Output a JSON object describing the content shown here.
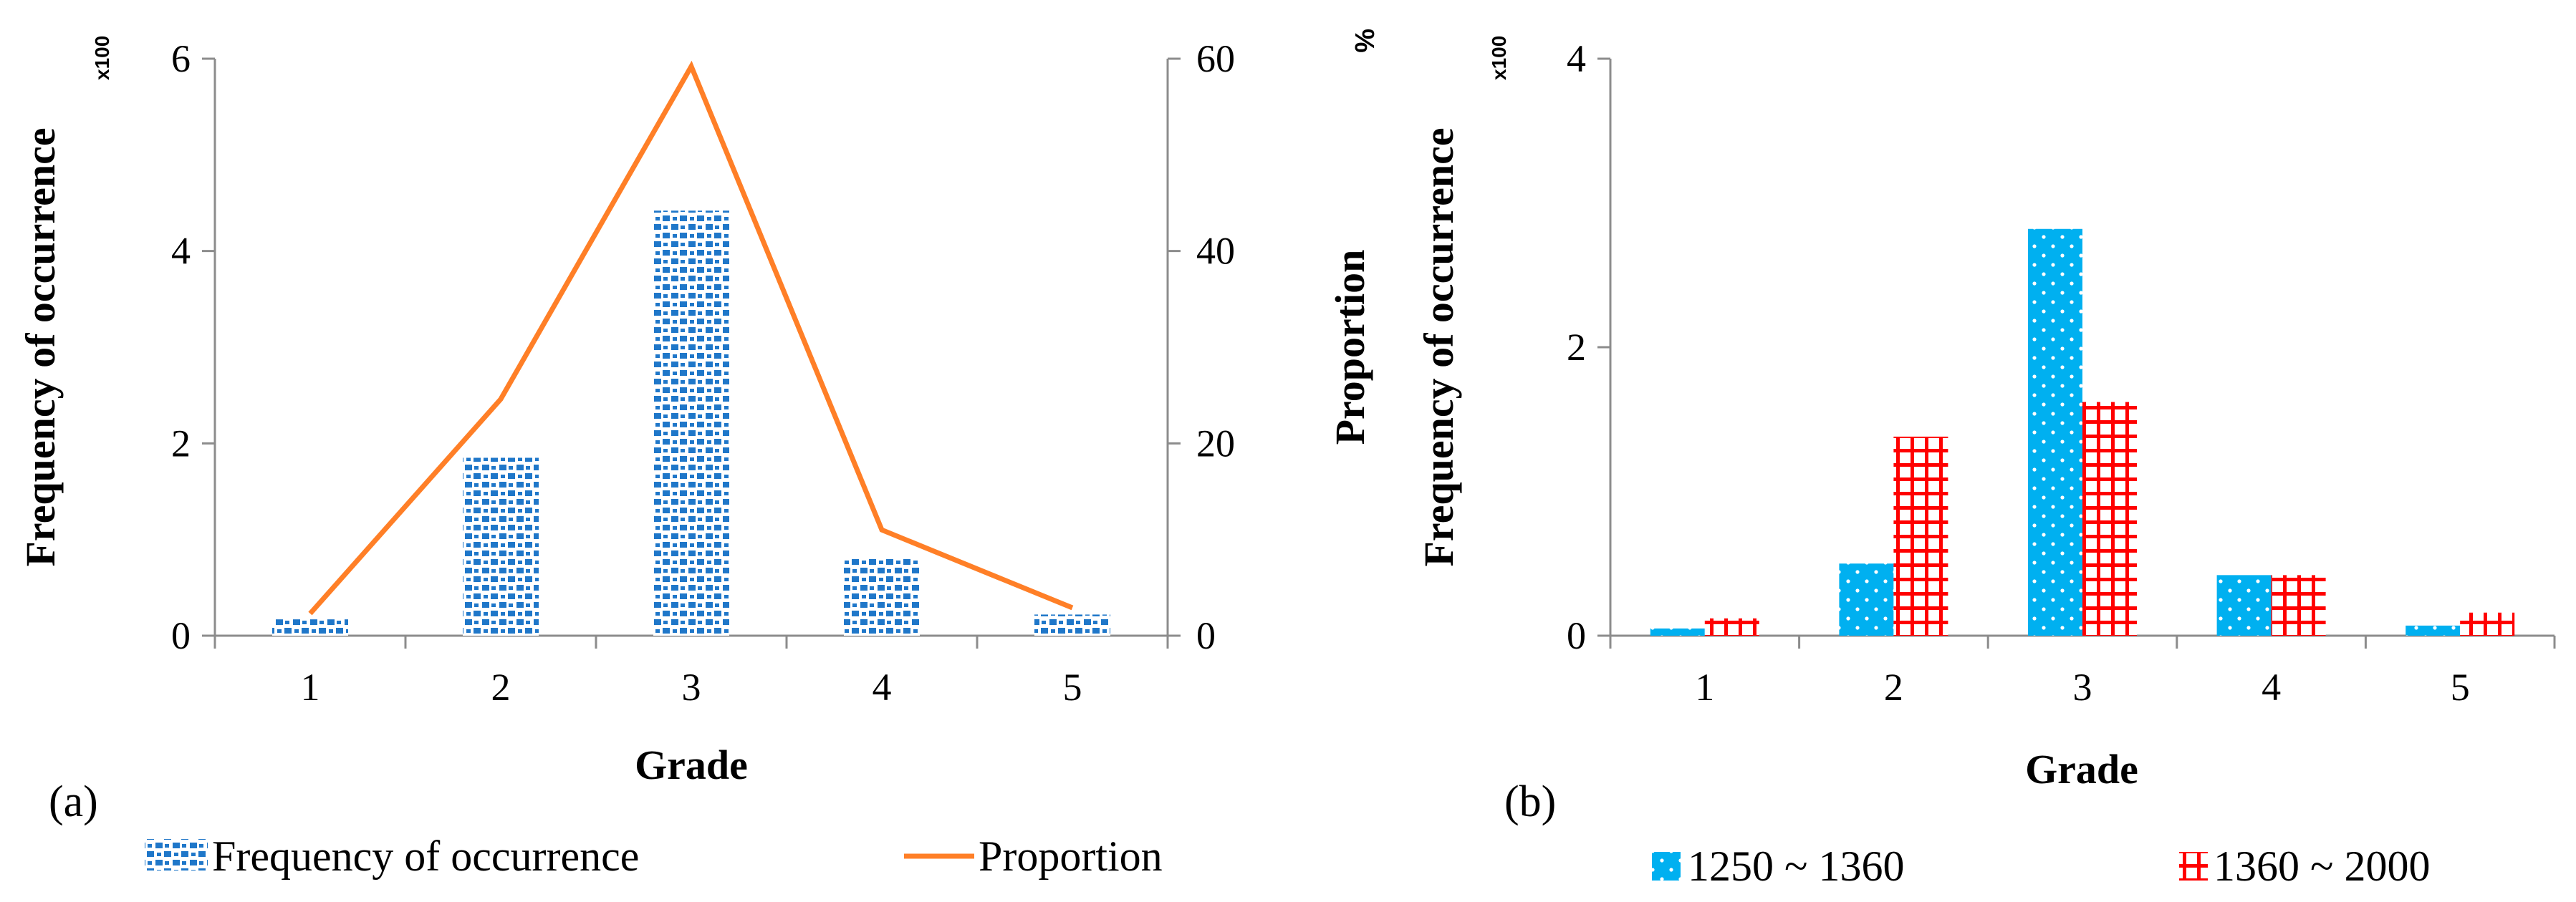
{
  "colors": {
    "freq": "#1f77c9",
    "proportion": "#ff7f27",
    "series_b1": "#00b0f0",
    "series_b2": "#ff0000",
    "axis": "#8c8c8c"
  },
  "chart_data": [
    {
      "type": "bar+line",
      "panel_label": "(a)",
      "categories": [
        "1",
        "2",
        "3",
        "4",
        "5"
      ],
      "xlabel": "Grade",
      "ylabel": "Frequency of occurrence",
      "ylabel_right": "Proportion",
      "y_multiplier": "x100",
      "y2_unit": "%",
      "ylim": [
        0,
        6
      ],
      "yticks": [
        "0",
        "2",
        "4",
        "6"
      ],
      "y2lim": [
        0,
        60
      ],
      "y2ticks": [
        "0",
        "20",
        "40",
        "60"
      ],
      "series": [
        {
          "name": "Frequency of occurrence",
          "kind": "bar",
          "axis": "left",
          "values": [
            0.17,
            1.85,
            4.42,
            0.82,
            0.22
          ]
        },
        {
          "name": "Proportion",
          "kind": "line",
          "axis": "right",
          "values": [
            2.3,
            24.6,
            59.2,
            11.0,
            2.9
          ]
        }
      ],
      "legend": [
        "Frequency of occurrence",
        "Proportion"
      ]
    },
    {
      "type": "bar",
      "panel_label": "(b)",
      "categories": [
        "1",
        "2",
        "3",
        "4",
        "5"
      ],
      "xlabel": "Grade",
      "ylabel": "Frequency of occurrence",
      "y_multiplier": "x100",
      "ylim": [
        0,
        4
      ],
      "yticks": [
        "0",
        "2",
        "4"
      ],
      "series": [
        {
          "name": "1250 ~ 1360",
          "values": [
            0.05,
            0.5,
            2.82,
            0.42,
            0.07
          ]
        },
        {
          "name": "1360 ~ 2000",
          "values": [
            0.12,
            1.38,
            1.62,
            0.42,
            0.16
          ]
        }
      ],
      "legend": [
        "1250 ~ 1360",
        "1360 ~ 2000"
      ]
    }
  ]
}
